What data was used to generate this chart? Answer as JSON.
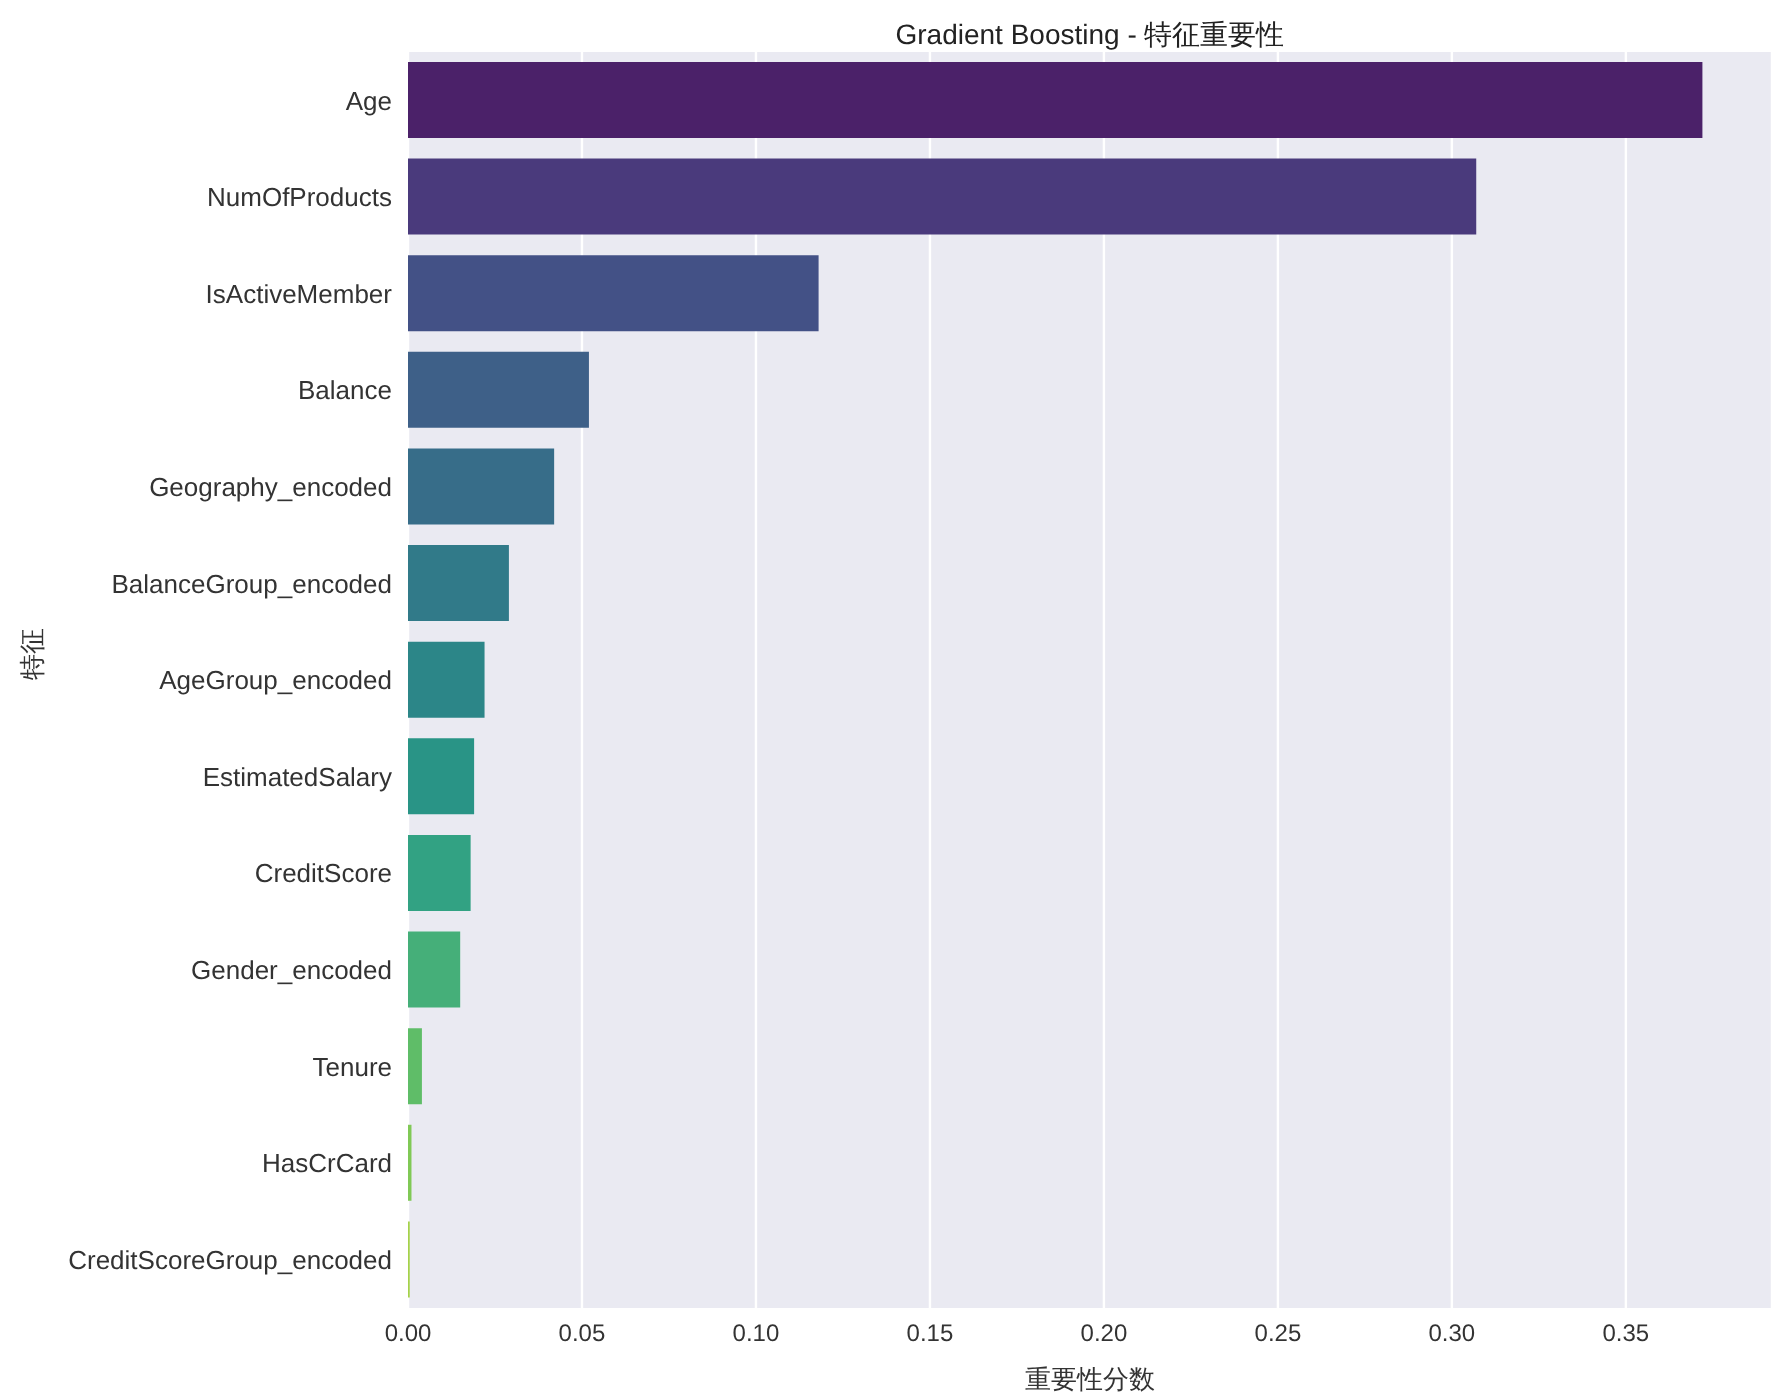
{
  "chart_data": {
    "type": "bar",
    "orientation": "horizontal",
    "title": "Gradient Boosting - 特征重要性",
    "xlabel": "重要性分数",
    "ylabel": "特征",
    "categories": [
      "Age",
      "NumOfProducts",
      "IsActiveMember",
      "Balance",
      "Geography_encoded",
      "BalanceGroup_encoded",
      "AgeGroup_encoded",
      "EstimatedSalary",
      "CreditScore",
      "Gender_encoded",
      "Tenure",
      "HasCrCard",
      "CreditScoreGroup_encoded"
    ],
    "values": [
      0.372,
      0.307,
      0.118,
      0.052,
      0.042,
      0.029,
      0.022,
      0.019,
      0.018,
      0.015,
      0.004,
      0.001,
      0.0005
    ],
    "colors": [
      "#4b2169",
      "#4a3a7c",
      "#435186",
      "#3e6088",
      "#376d89",
      "#317a89",
      "#2c8688",
      "#299486",
      "#32a283",
      "#45af79",
      "#5fbd68",
      "#80c956",
      "#a5d24a"
    ],
    "xlim": [
      0,
      0.392
    ],
    "xticks": [
      {
        "value": 0,
        "label": "0.00"
      },
      {
        "value": 0.05,
        "label": "0.05"
      },
      {
        "value": 0.1,
        "label": "0.10"
      },
      {
        "value": 0.15,
        "label": "0.15"
      },
      {
        "value": 0.2,
        "label": "0.20"
      },
      {
        "value": 0.25,
        "label": "0.25"
      },
      {
        "value": 0.3,
        "label": "0.30"
      },
      {
        "value": 0.35,
        "label": "0.35"
      }
    ],
    "grid": "x"
  }
}
